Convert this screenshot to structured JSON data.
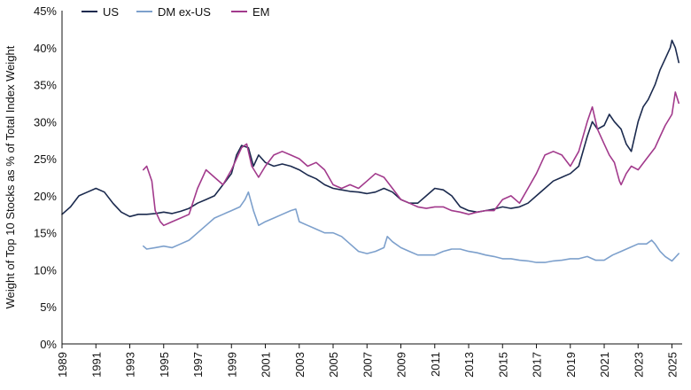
{
  "chart_data": {
    "type": "line",
    "title": "",
    "xlabel": "",
    "ylabel": "Weight of Top 10 Stocks as % of Total Index Weight",
    "xlim": [
      1989,
      2025.6
    ],
    "ylim": [
      0,
      45
    ],
    "y_ticks": [
      0,
      5,
      10,
      15,
      20,
      25,
      30,
      35,
      40,
      45
    ],
    "y_tick_labels": [
      "0%",
      "5%",
      "10%",
      "15%",
      "20%",
      "25%",
      "30%",
      "35%",
      "40%",
      "45%"
    ],
    "x_ticks": [
      1989,
      1991,
      1993,
      1995,
      1997,
      1999,
      2001,
      2003,
      2005,
      2007,
      2009,
      2011,
      2013,
      2015,
      2017,
      2019,
      2021,
      2023,
      2025
    ],
    "x_tick_labels": [
      "1989",
      "1991",
      "1993",
      "1995",
      "1997",
      "1999",
      "2001",
      "2003",
      "2005",
      "2007",
      "2009",
      "2011",
      "2013",
      "2015",
      "2017",
      "2019",
      "2021",
      "2023",
      "2025"
    ],
    "grid": false,
    "legend_position": "top-left",
    "series": [
      {
        "name": "US",
        "color": "#1b2a4e",
        "x": [
          1989,
          1989.5,
          1990,
          1990.5,
          1991,
          1991.5,
          1992,
          1992.5,
          1993,
          1993.5,
          1994,
          1994.5,
          1995,
          1995.5,
          1996,
          1996.5,
          1997,
          1997.5,
          1998,
          1998.5,
          1999,
          1999.3,
          1999.6,
          2000,
          2000.3,
          2000.6,
          2001,
          2001.5,
          2002,
          2002.5,
          2003,
          2003.5,
          2004,
          2004.5,
          2005,
          2005.5,
          2006,
          2006.5,
          2007,
          2007.5,
          2008,
          2008.5,
          2009,
          2009.5,
          2010,
          2010.5,
          2011,
          2011.5,
          2012,
          2012.5,
          2013,
          2013.5,
          2014,
          2014.5,
          2015,
          2015.5,
          2016,
          2016.5,
          2017,
          2017.5,
          2018,
          2018.5,
          2019,
          2019.5,
          2020,
          2020.3,
          2020.6,
          2021,
          2021.3,
          2021.6,
          2022,
          2022.3,
          2022.6,
          2023,
          2023.3,
          2023.6,
          2024,
          2024.3,
          2024.6,
          2024.9,
          2025,
          2025.2,
          2025.4
        ],
        "y": [
          17.5,
          18.5,
          20.0,
          20.5,
          21.0,
          20.5,
          19.0,
          17.8,
          17.2,
          17.5,
          17.5,
          17.6,
          17.8,
          17.6,
          17.9,
          18.3,
          19.0,
          19.5,
          20.0,
          21.5,
          23.0,
          25.5,
          26.8,
          26.5,
          24.0,
          25.5,
          24.5,
          24.0,
          24.3,
          24.0,
          23.5,
          22.8,
          22.3,
          21.5,
          21.0,
          20.8,
          20.6,
          20.5,
          20.3,
          20.5,
          21.0,
          20.5,
          19.5,
          19.0,
          19.0,
          20.0,
          21.0,
          20.8,
          20.0,
          18.5,
          18.0,
          17.8,
          18.0,
          18.2,
          18.5,
          18.3,
          18.5,
          19.0,
          20.0,
          21.0,
          22.0,
          22.5,
          23.0,
          24.0,
          28.0,
          30.0,
          29.0,
          29.5,
          31.0,
          30.0,
          29.0,
          27.0,
          26.0,
          30.0,
          32.0,
          33.0,
          35.0,
          37.0,
          38.5,
          40.0,
          41.0,
          40.0,
          38.0
        ]
      },
      {
        "name": "DM ex-US",
        "color": "#7da0cc",
        "x": [
          1993.8,
          1994,
          1994.5,
          1995,
          1995.5,
          1996,
          1996.5,
          1997,
          1997.5,
          1998,
          1998.5,
          1999,
          1999.5,
          1999.8,
          2000,
          2000.3,
          2000.6,
          2001,
          2001.5,
          2002,
          2002.5,
          2002.8,
          2003,
          2003.5,
          2004,
          2004.5,
          2005,
          2005.5,
          2006,
          2006.5,
          2007,
          2007.5,
          2008,
          2008.2,
          2008.5,
          2009,
          2009.5,
          2010,
          2010.5,
          2011,
          2011.5,
          2012,
          2012.5,
          2013,
          2013.5,
          2014,
          2014.5,
          2015,
          2015.5,
          2016,
          2016.5,
          2017,
          2017.5,
          2018,
          2018.5,
          2019,
          2019.5,
          2020,
          2020.5,
          2021,
          2021.5,
          2022,
          2022.5,
          2023,
          2023.5,
          2023.8,
          2024,
          2024.3,
          2024.6,
          2025,
          2025.4
        ],
        "y": [
          13.2,
          12.8,
          13.0,
          13.2,
          13.0,
          13.5,
          14.0,
          15.0,
          16.0,
          17.0,
          17.5,
          18.0,
          18.5,
          19.5,
          20.5,
          18.0,
          16.0,
          16.5,
          17.0,
          17.5,
          18.0,
          18.2,
          16.5,
          16.0,
          15.5,
          15.0,
          15.0,
          14.5,
          13.5,
          12.5,
          12.2,
          12.5,
          13.0,
          14.5,
          13.8,
          13.0,
          12.5,
          12.0,
          12.0,
          12.0,
          12.5,
          12.8,
          12.8,
          12.5,
          12.3,
          12.0,
          11.8,
          11.5,
          11.5,
          11.3,
          11.2,
          11.0,
          11.0,
          11.2,
          11.3,
          11.5,
          11.5,
          11.8,
          11.3,
          11.3,
          12.0,
          12.5,
          13.0,
          13.5,
          13.5,
          14.0,
          13.5,
          12.5,
          11.8,
          11.2,
          12.2
        ]
      },
      {
        "name": "EM",
        "color": "#a23a8c",
        "x": [
          1993.8,
          1994,
          1994.3,
          1994.5,
          1994.8,
          1995,
          1995.5,
          1996,
          1996.5,
          1997,
          1997.5,
          1998,
          1998.5,
          1999,
          1999.3,
          1999.6,
          1999.9,
          2000.2,
          2000.6,
          2001,
          2001.5,
          2002,
          2002.5,
          2003,
          2003.5,
          2004,
          2004.5,
          2005,
          2005.5,
          2006,
          2006.5,
          2007,
          2007.5,
          2008,
          2008.5,
          2009,
          2009.5,
          2010,
          2010.5,
          2011,
          2011.5,
          2012,
          2012.5,
          2013,
          2013.5,
          2014,
          2014.5,
          2015,
          2015.5,
          2016,
          2016.5,
          2017,
          2017.5,
          2018,
          2018.5,
          2019,
          2019.5,
          2020,
          2020.3,
          2020.6,
          2021,
          2021.3,
          2021.6,
          2021.9,
          2022,
          2022.3,
          2022.6,
          2023,
          2023.5,
          2024,
          2024.3,
          2024.6,
          2025,
          2025.2,
          2025.4
        ],
        "y": [
          23.5,
          24.0,
          22.0,
          18.0,
          16.5,
          16.0,
          16.5,
          17.0,
          17.5,
          21.0,
          23.5,
          22.5,
          21.5,
          23.5,
          25.0,
          26.5,
          27.0,
          24.0,
          22.5,
          24.0,
          25.5,
          26.0,
          25.5,
          25.0,
          24.0,
          24.5,
          23.5,
          21.5,
          21.0,
          21.5,
          21.0,
          22.0,
          23.0,
          22.5,
          21.0,
          19.5,
          19.0,
          18.5,
          18.3,
          18.5,
          18.5,
          18.0,
          17.8,
          17.5,
          17.8,
          18.0,
          18.0,
          19.5,
          20.0,
          19.0,
          21.0,
          23.0,
          25.5,
          26.0,
          25.5,
          24.0,
          26.0,
          30.0,
          32.0,
          29.0,
          27.0,
          25.5,
          24.5,
          22.0,
          21.5,
          23.0,
          24.0,
          23.5,
          25.0,
          26.5,
          28.0,
          29.5,
          31.0,
          34.0,
          32.5
        ]
      }
    ]
  }
}
